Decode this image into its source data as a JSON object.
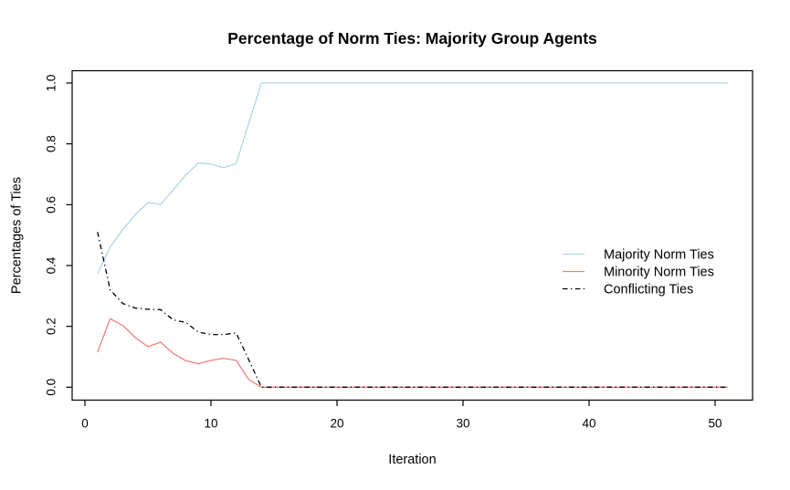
{
  "chart_data": {
    "type": "line",
    "title": "Percentage of Norm Ties: Majority Group Agents",
    "xlabel": "Iteration",
    "ylabel": "Percentages of Ties",
    "xlim": [
      1,
      51
    ],
    "ylim": [
      0.0,
      1.0
    ],
    "grid": false,
    "x_ticks": [
      0,
      10,
      20,
      30,
      40,
      50
    ],
    "x_tick_labels": [
      "0",
      "10",
      "20",
      "30",
      "40",
      "50"
    ],
    "y_ticks": [
      0.0,
      0.2,
      0.4,
      0.6,
      0.8,
      1.0
    ],
    "y_tick_labels": [
      "0.0",
      "0.2",
      "0.4",
      "0.6",
      "0.8",
      "1.0"
    ],
    "legend_position": "right-inside",
    "x": [
      1,
      2,
      3,
      4,
      5,
      6,
      7,
      8,
      9,
      10,
      11,
      12,
      13,
      14,
      15,
      16,
      17,
      18,
      19,
      20,
      21,
      22,
      23,
      24,
      25,
      26,
      27,
      28,
      29,
      30,
      31,
      32,
      33,
      34,
      35,
      36,
      37,
      38,
      39,
      40,
      41,
      42,
      43,
      44,
      45,
      46,
      47,
      48,
      49,
      50,
      51
    ],
    "series": [
      {
        "name": "Majority Norm Ties",
        "color": "#ADD8E6",
        "line_style": "solid",
        "values": [
          0.373,
          0.461,
          0.518,
          0.568,
          0.607,
          0.601,
          0.648,
          0.698,
          0.737,
          0.734,
          0.722,
          0.735,
          0.868,
          1.0,
          1.0,
          1.0,
          1.0,
          1.0,
          1.0,
          1.0,
          1.0,
          1.0,
          1.0,
          1.0,
          1.0,
          1.0,
          1.0,
          1.0,
          1.0,
          1.0,
          1.0,
          1.0,
          1.0,
          1.0,
          1.0,
          1.0,
          1.0,
          1.0,
          1.0,
          1.0,
          1.0,
          1.0,
          1.0,
          1.0,
          1.0,
          1.0,
          1.0,
          1.0,
          1.0,
          1.0,
          1.0
        ]
      },
      {
        "name": "Minority Norm Ties",
        "color": "#F08080",
        "line_style": "solid",
        "values": [
          0.115,
          0.225,
          0.203,
          0.163,
          0.133,
          0.148,
          0.111,
          0.087,
          0.077,
          0.088,
          0.095,
          0.088,
          0.025,
          0,
          0,
          0,
          0,
          0,
          0,
          0,
          0,
          0,
          0,
          0,
          0,
          0,
          0,
          0,
          0,
          0,
          0,
          0,
          0,
          0,
          0,
          0,
          0,
          0,
          0,
          0,
          0,
          0,
          0,
          0,
          0,
          0,
          0,
          0,
          0,
          0,
          0
        ]
      },
      {
        "name": "Conflicting Ties",
        "color": "#000000",
        "line_style": "dotdash",
        "values": [
          0.51,
          0.32,
          0.275,
          0.26,
          0.256,
          0.255,
          0.221,
          0.213,
          0.181,
          0.173,
          0.173,
          0.178,
          0.09,
          0,
          0,
          0,
          0,
          0,
          0,
          0,
          0,
          0,
          0,
          0,
          0,
          0,
          0,
          0,
          0,
          0,
          0,
          0,
          0,
          0,
          0,
          0,
          0,
          0,
          0,
          0,
          0,
          0,
          0,
          0,
          0,
          0,
          0,
          0,
          0,
          0,
          0
        ]
      }
    ],
    "colors": {
      "axis": "#000000",
      "background": "#ffffff",
      "majority_line": "#ADD8E6",
      "minority_line": "#F08080",
      "conflicting_line": "#000000"
    }
  }
}
